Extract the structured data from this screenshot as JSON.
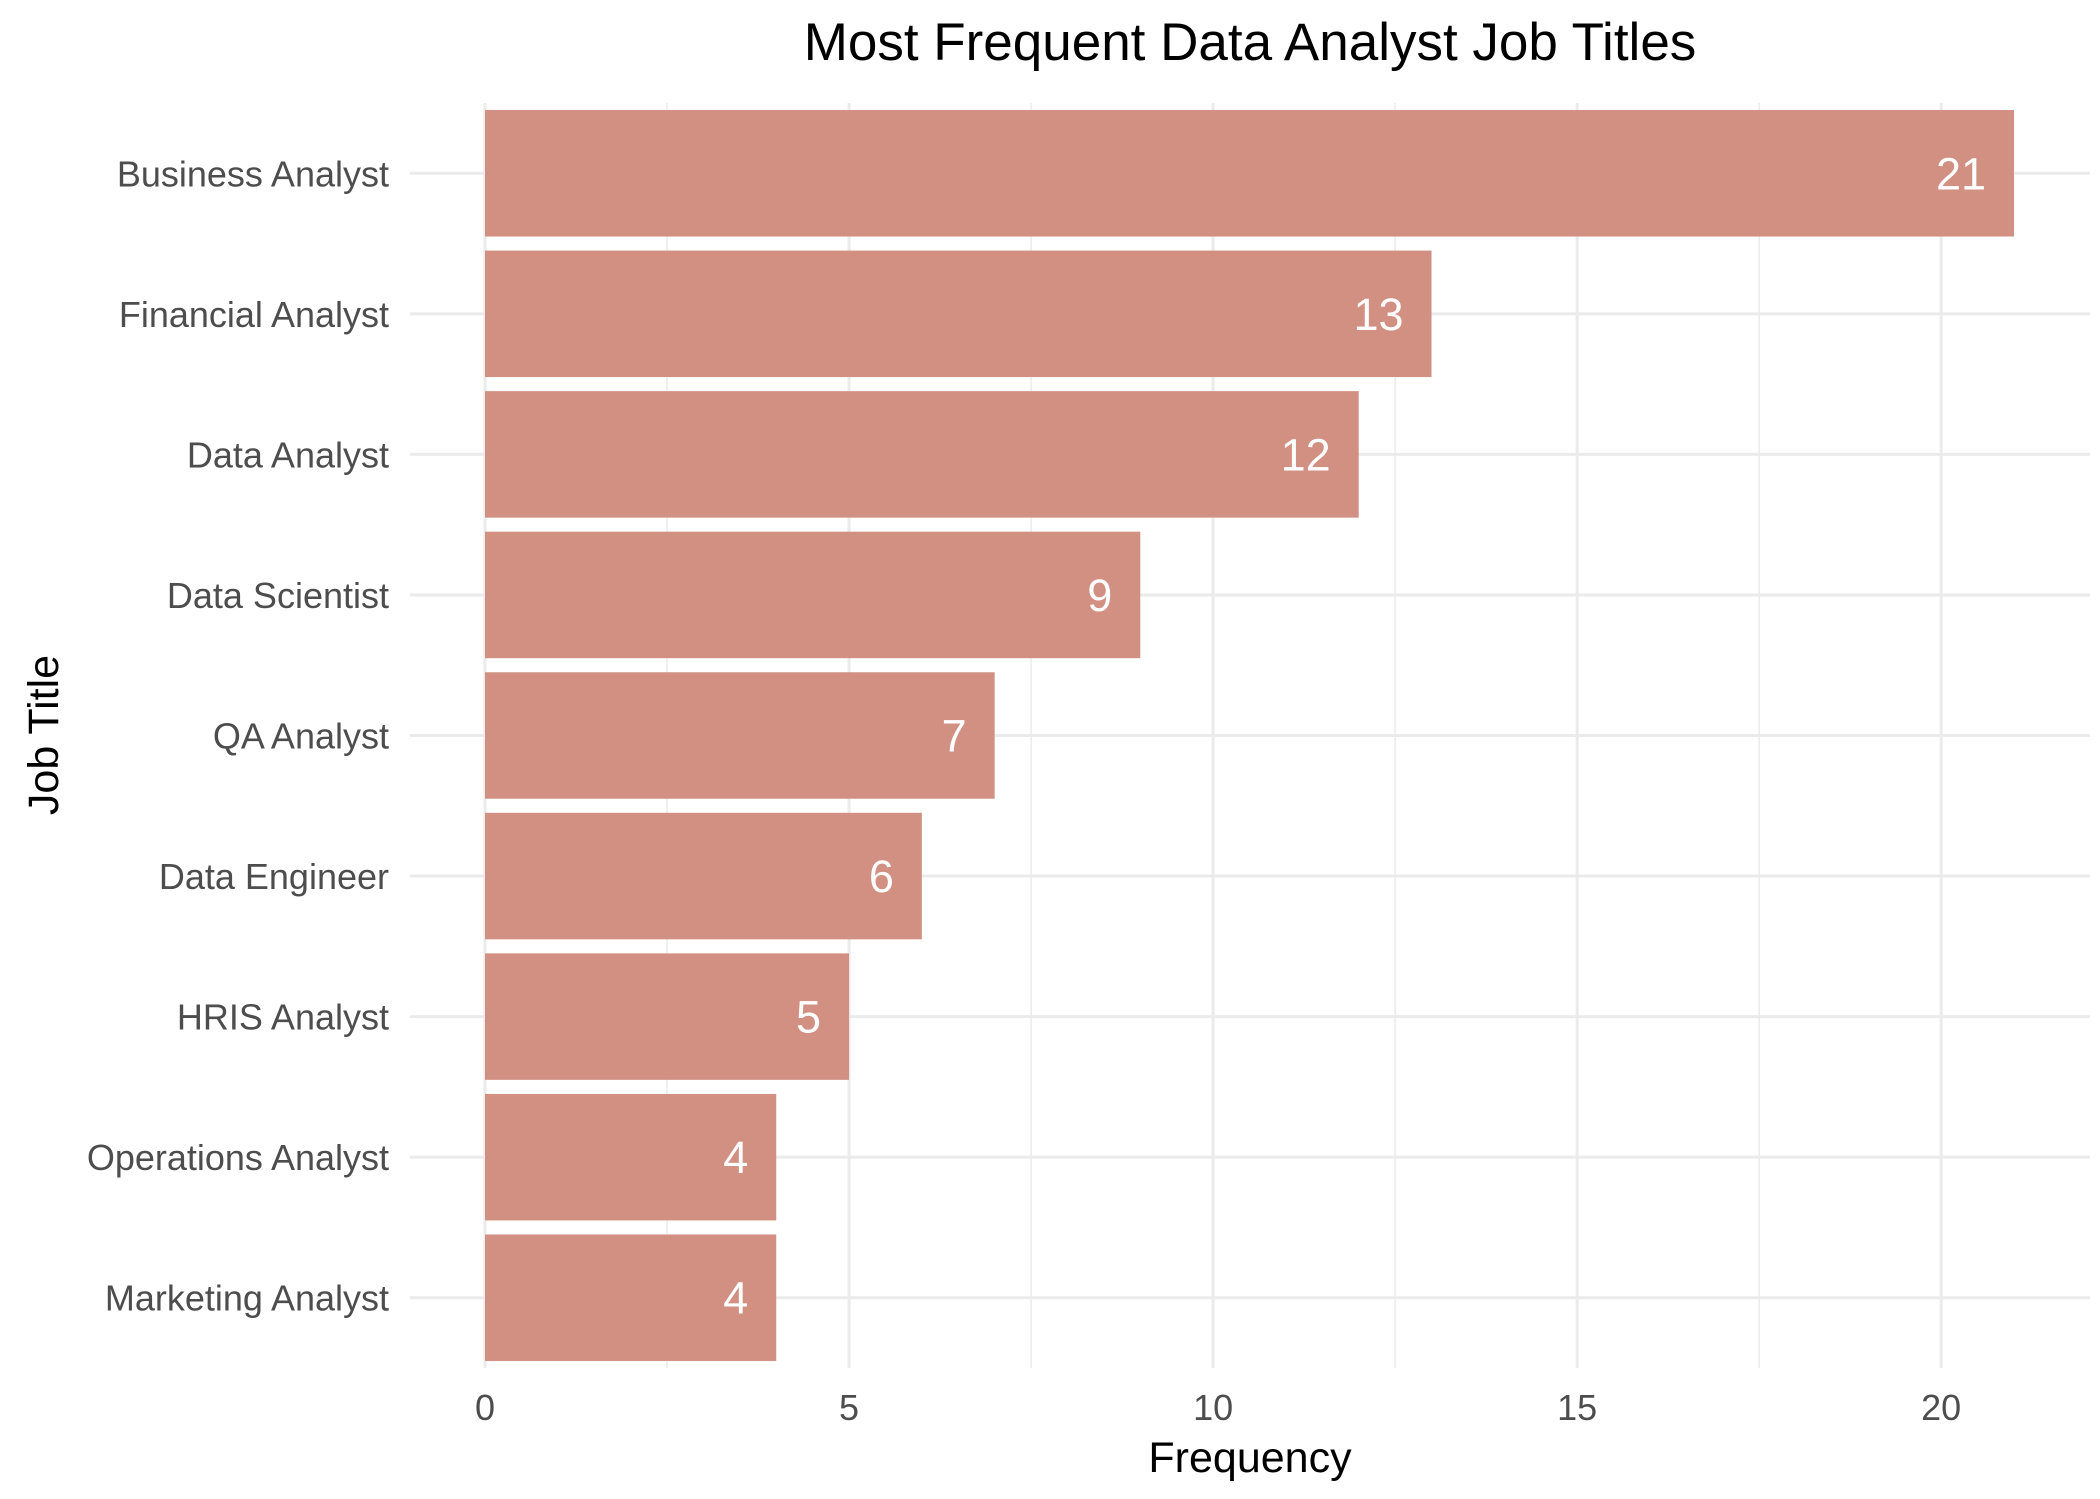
{
  "chart_data": {
    "type": "bar",
    "orientation": "horizontal",
    "title": "Most Frequent Data Analyst Job Titles",
    "xlabel": "Frequency",
    "ylabel": "Job Title",
    "categories": [
      "Business Analyst",
      "Financial Analyst",
      "Data Analyst",
      "Data Scientist",
      "QA Analyst",
      "Data Engineer",
      "HRIS Analyst",
      "Operations Analyst",
      "Marketing Analyst"
    ],
    "values": [
      21,
      13,
      12,
      9,
      7,
      6,
      5,
      4,
      4
    ],
    "data_labels": [
      "21",
      "13",
      "12",
      "9",
      "7",
      "6",
      "5",
      "4",
      "4"
    ],
    "xticks": [
      0,
      5,
      10,
      15,
      20
    ],
    "xtick_labels": [
      "0",
      "5",
      "10",
      "15",
      "20"
    ],
    "xlim": [
      0,
      22.05
    ],
    "grid": true,
    "legend": "none",
    "colors": {
      "bar": "#d29082",
      "grid": "#ebebeb",
      "label": "#ffffff"
    }
  }
}
